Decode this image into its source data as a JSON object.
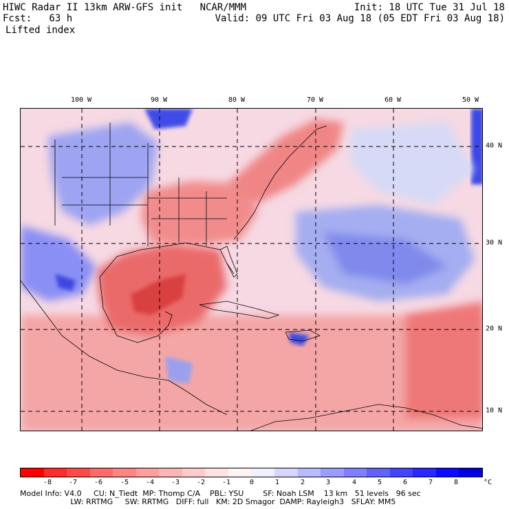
{
  "header": {
    "title": "HIWC Radar II 13km ARW-GFS init   NCAR/MMM",
    "init": "Init: 18 UTC Tue 31 Jul 18",
    "fcst": "Fcst:   63 h",
    "valid": "Valid: 09 UTC Fri 03 Aug 18 (05 EDT Fri 03 Aug 18)",
    "field": "Lifted index"
  },
  "axes": {
    "lon_labels": [
      "100 W",
      "90 W",
      "80 W",
      "70 W",
      "60 W",
      "50 W"
    ],
    "lat_labels": [
      "40 N",
      "30 N",
      "20 N",
      "10 N"
    ]
  },
  "colorbar": {
    "colors": [
      "#ff0000",
      "#ff2a2a",
      "#ff4a4a",
      "#ff6a6a",
      "#ff8585",
      "#ff9f9f",
      "#ffb5b5",
      "#ffcccc",
      "#ffe3e3",
      "#fff4f4",
      "#f0f0ff",
      "#d6d6ff",
      "#b9b9ff",
      "#9c9cff",
      "#7f7fff",
      "#6262ff",
      "#4545ff",
      "#2828ff",
      "#0b0bff",
      "#0000e0"
    ],
    "ticks": [
      "-8",
      "-7",
      "-6",
      "-5",
      "-4",
      "-3",
      "-2",
      "-1",
      "0",
      "1",
      "2",
      "3",
      "4",
      "5",
      "6",
      "7",
      "8"
    ],
    "unit": "°C"
  },
  "footer": {
    "line1": "Model Info: V4.0     CU: N_Tiedt  MP: Thomp C/A    PBL: YSU        SF: Noah LSM    13 km   51 levels   96 sec",
    "line2": "                     LW: RRTMG     SW: RRTMG   DIFF: full   KM: 2D Smagor  DAMP: Rayleigh3   SFLAY: MM5"
  },
  "map_colors": {
    "land_warm": "#f28c8c",
    "strong_warm": "#e85a5a",
    "cool": "#8a8ff5",
    "ocean_neutral": "#f5d6e0",
    "atlantic_cool": "#9aa4f0"
  }
}
